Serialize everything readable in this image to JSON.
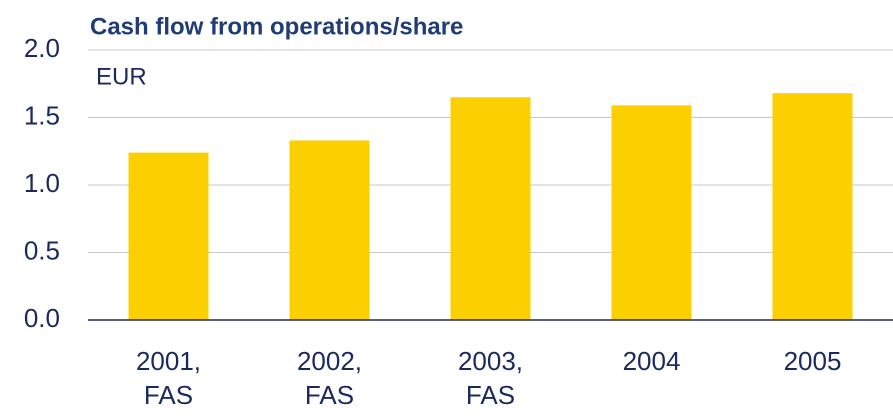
{
  "chart_data": {
    "type": "bar",
    "title": "Cash flow from operations/share",
    "unit_label": "EUR",
    "categories": [
      "2001,\nFAS",
      "2002,\nFAS",
      "2003,\nFAS",
      "2004",
      "2005"
    ],
    "values": [
      1.24,
      1.33,
      1.65,
      1.59,
      1.68
    ],
    "color": "#fcd000",
    "ylim": [
      0,
      2
    ],
    "yticks": [
      {
        "value": 0,
        "label": "0.0"
      },
      {
        "value": 0.5,
        "label": "0.5"
      },
      {
        "value": 1,
        "label": "1.0"
      },
      {
        "value": 1.5,
        "label": "1.5"
      },
      {
        "value": 2,
        "label": "2.0"
      }
    ],
    "grid": true
  }
}
